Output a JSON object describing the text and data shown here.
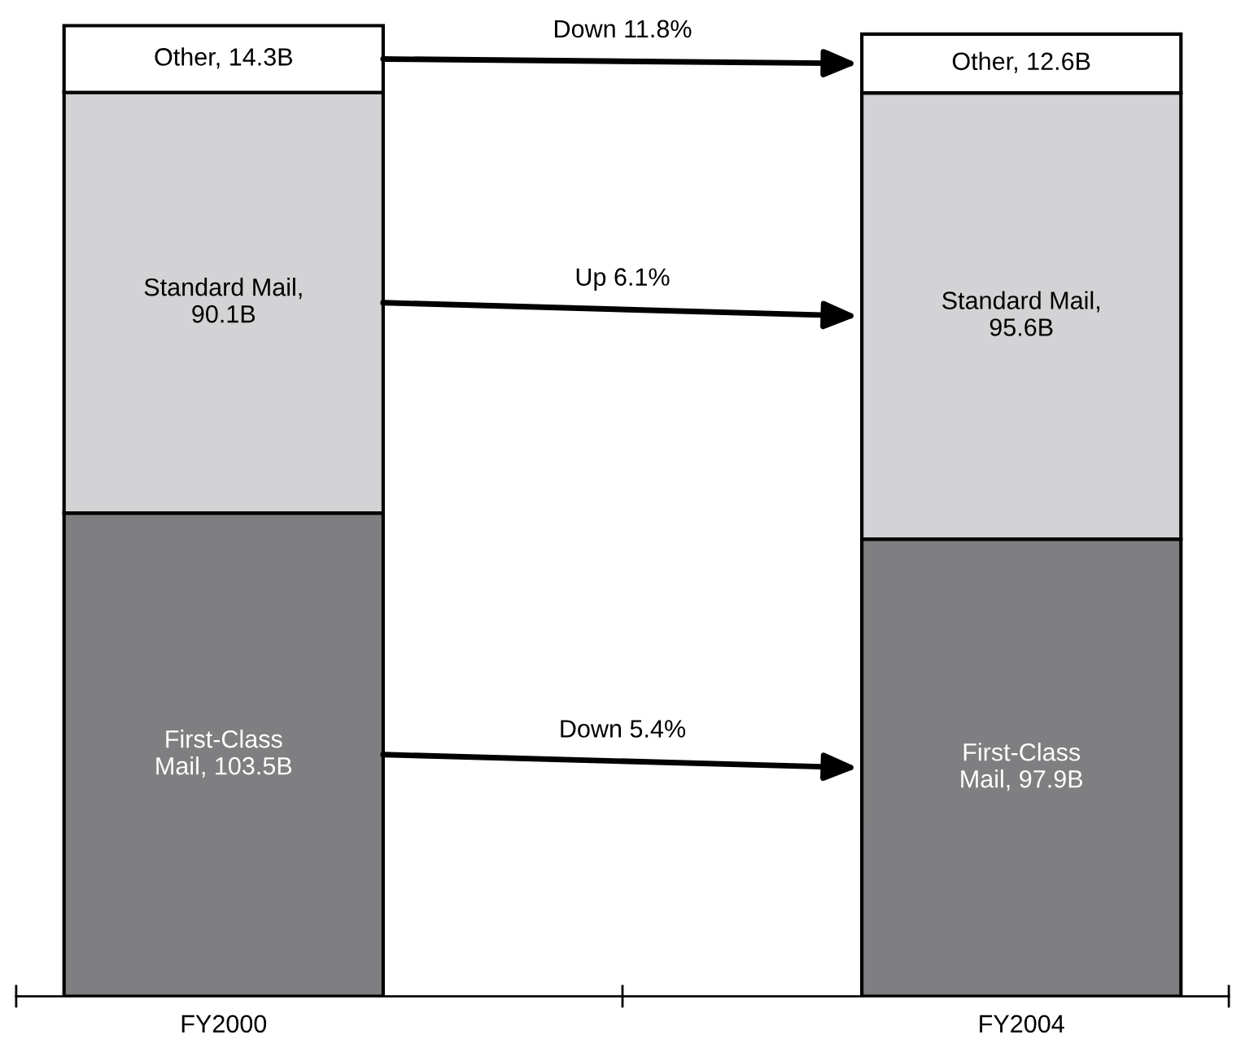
{
  "chart_data": {
    "type": "bar",
    "stacked": true,
    "categories": [
      "FY2000",
      "FY2004"
    ],
    "series": [
      {
        "color": "#7f7f81",
        "values": [
          103.5,
          97.9
        ],
        "value_labels": [
          "First-Class\nMail, 103.5B",
          "First-Class\nMail, 97.9B"
        ]
      },
      {
        "color": "#d3d3d5",
        "values": [
          90.1,
          95.6
        ],
        "value_labels": [
          "Standard Mail,\n90.1B",
          "Standard Mail,\n95.6B"
        ]
      },
      {
        "color": "#ffffff",
        "values": [
          14.3,
          12.6
        ],
        "value_labels": [
          "Other, 14.3B",
          "Other, 12.6B"
        ]
      }
    ],
    "annotations": [
      "Down 5.4%",
      "Up 6.1%",
      "Down 11.8%"
    ],
    "legend": false,
    "grid": false
  }
}
